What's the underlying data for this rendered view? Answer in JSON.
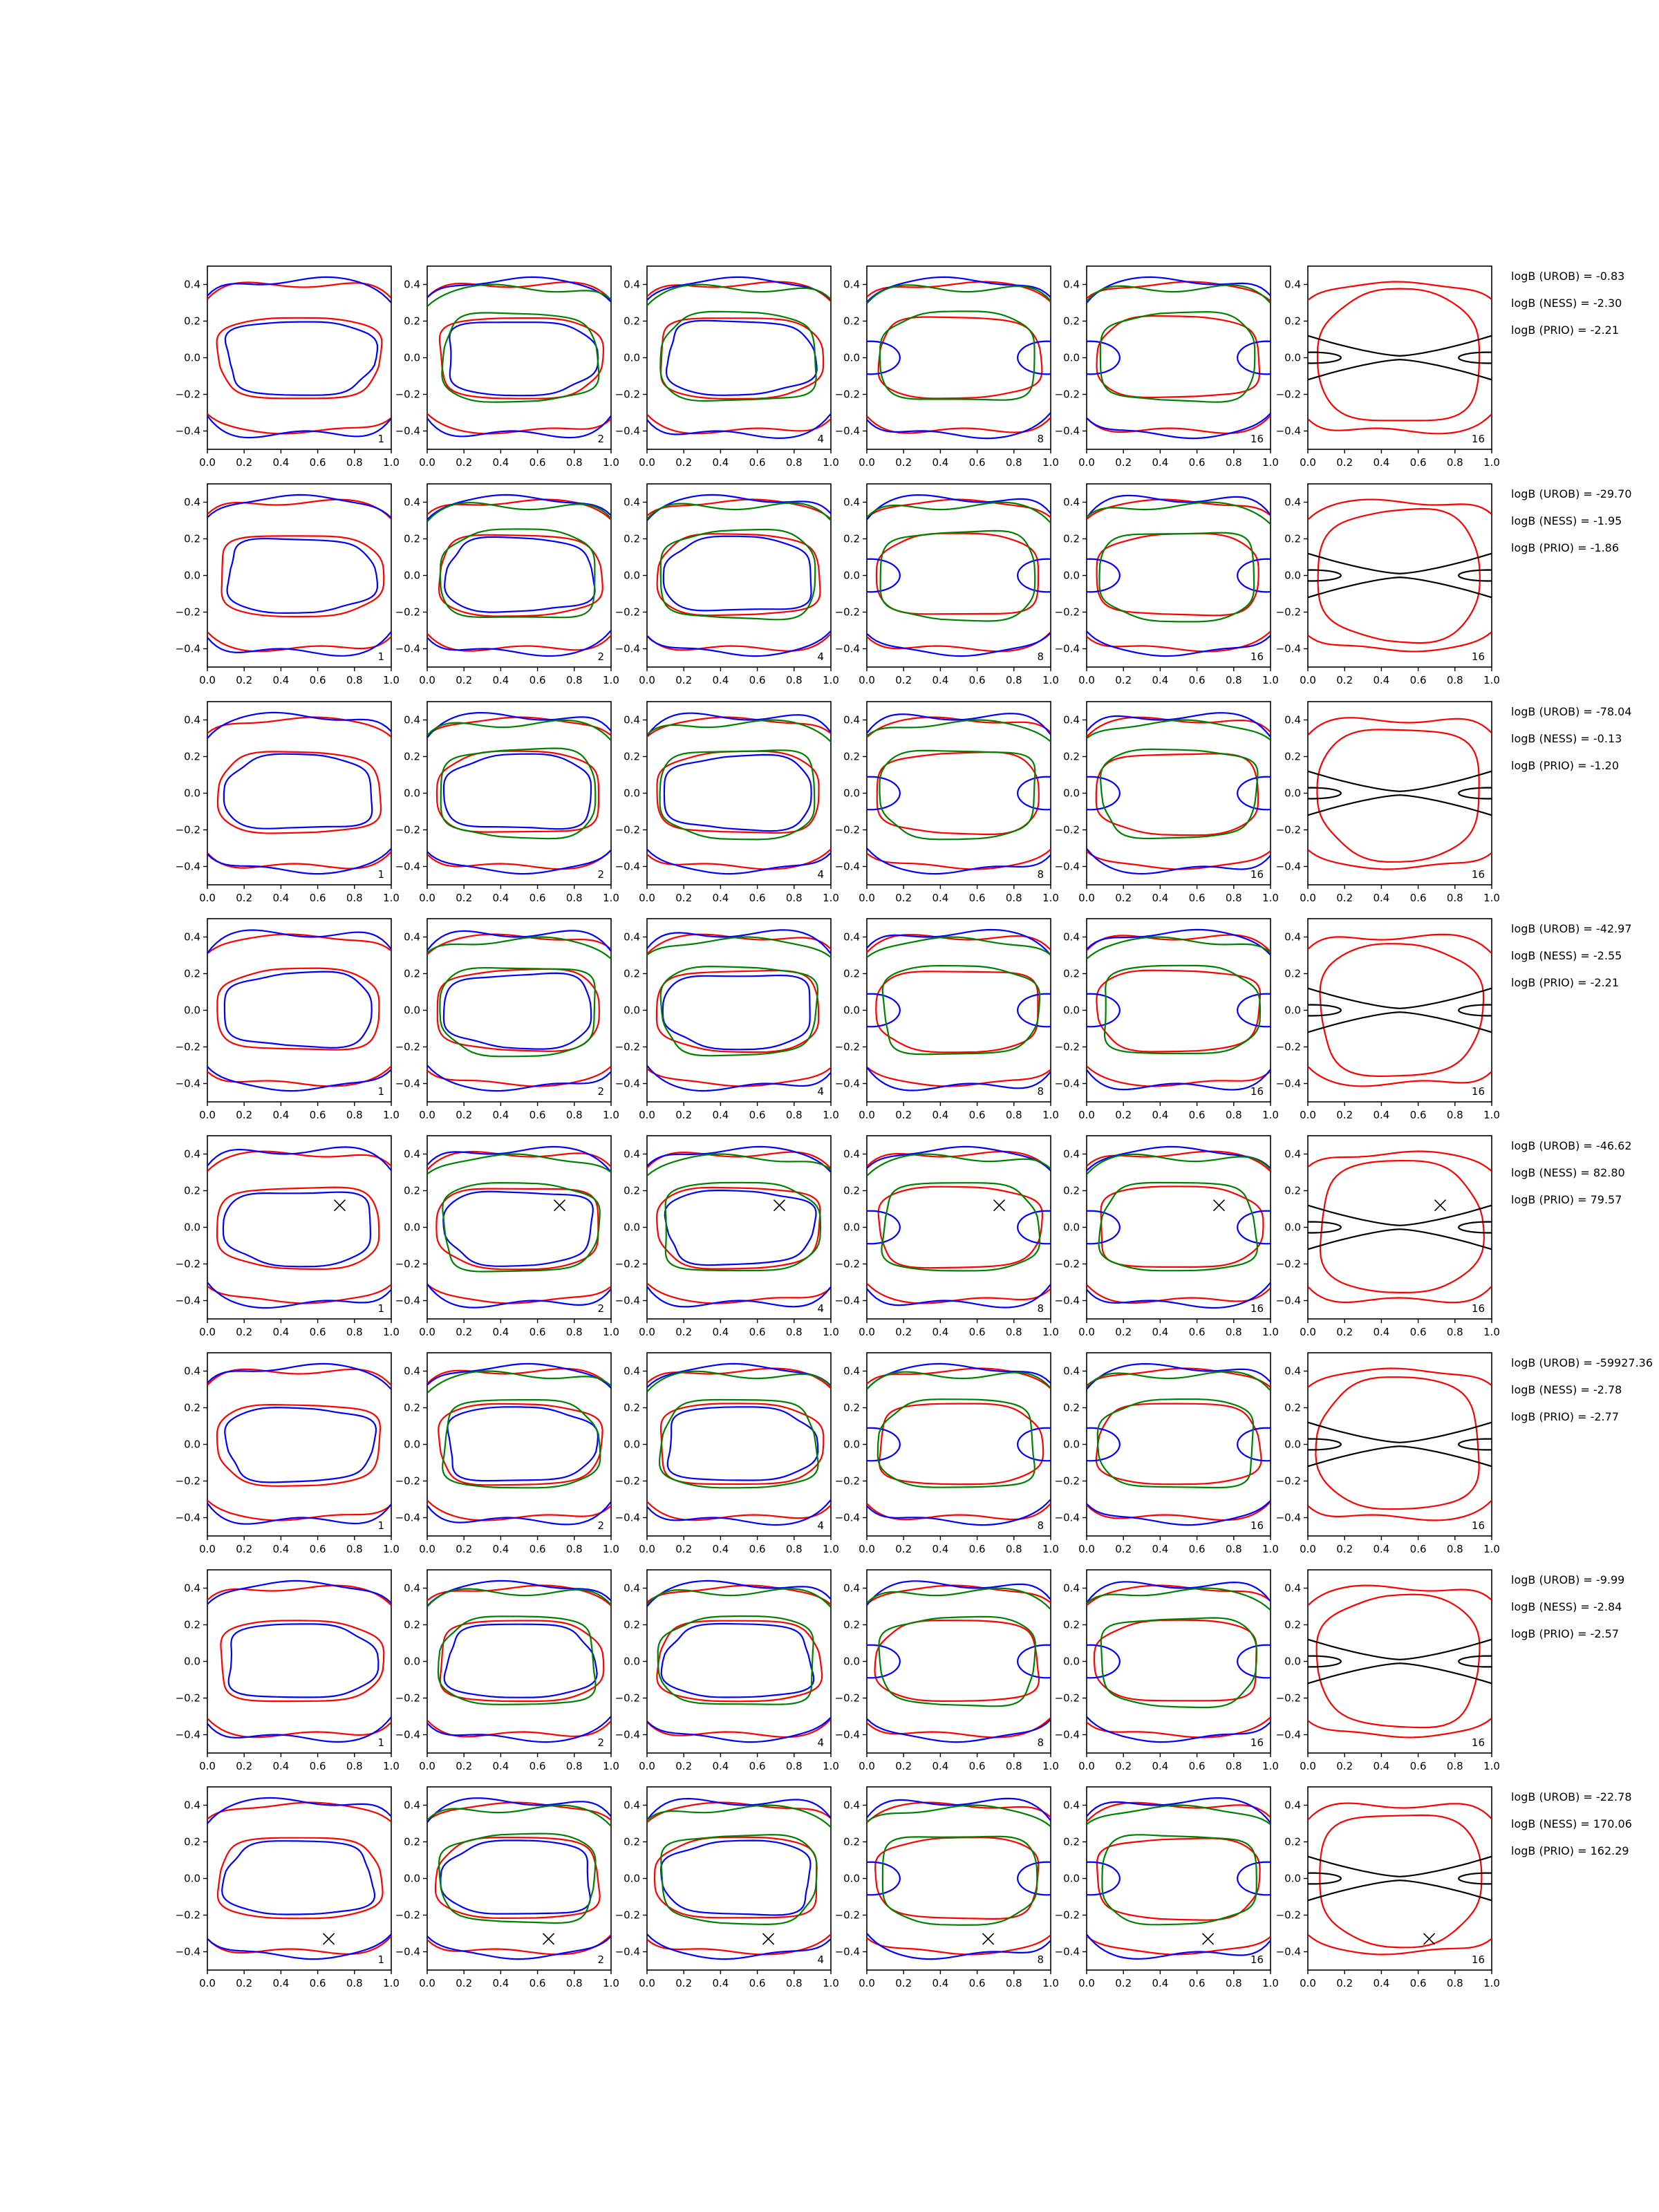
{
  "chart_data": {
    "type": "contour-grid",
    "title": "",
    "xlabel": "",
    "ylabel": "",
    "xlim": [
      0.0,
      1.0
    ],
    "ylim": [
      -0.5,
      0.5
    ],
    "x_ticks": [
      "0.0",
      "0.2",
      "0.4",
      "0.6",
      "0.8",
      "1.0"
    ],
    "y_ticks": [
      "0.4",
      "0.2",
      "0.0",
      "−0.2",
      "−0.4"
    ],
    "x_tick_values": [
      0.0,
      0.2,
      0.4,
      0.6,
      0.8,
      1.0
    ],
    "y_tick_values": [
      0.4,
      0.2,
      0.0,
      -0.2,
      -0.4
    ],
    "grid": false,
    "colors": {
      "blue": "#0000ff",
      "red": "#ff0000",
      "green": "#008000",
      "black": "#000000"
    },
    "column_labels": [
      "1",
      "2",
      "4",
      "8",
      "16",
      "16"
    ],
    "rows": [
      {
        "annotations": [
          "logB (UROB) = -0.83",
          "logB (NESS) = -2.30",
          "logB (PRIO) = -2.21"
        ],
        "marker": null
      },
      {
        "annotations": [
          "logB (UROB) = -29.70",
          "logB (NESS) = -1.95",
          "logB (PRIO) = -1.86"
        ],
        "marker": null
      },
      {
        "annotations": [
          "logB (UROB) = -78.04",
          "logB (NESS) = -0.13",
          "logB (PRIO) = -1.20"
        ],
        "marker": null
      },
      {
        "annotations": [
          "logB (UROB) = -42.97",
          "logB (NESS) = -2.55",
          "logB (PRIO) = -2.21"
        ],
        "marker": null
      },
      {
        "annotations": [
          "logB (UROB) = -46.62",
          "logB (NESS) = 82.80",
          "logB (PRIO) = 79.57"
        ],
        "marker": [
          0.72,
          0.12
        ]
      },
      {
        "annotations": [
          "logB (UROB) = -59927.36",
          "logB (NESS) = -2.78",
          "logB (PRIO) = -2.77"
        ],
        "marker": null
      },
      {
        "annotations": [
          "logB (UROB) = -9.99",
          "logB (NESS) = -2.84",
          "logB (PRIO) = -2.57"
        ],
        "marker": null
      },
      {
        "annotations": [
          "logB (UROB) = -22.78",
          "logB (NESS) = 170.06",
          "logB (PRIO) = 162.29"
        ],
        "marker": [
          0.66,
          -0.33
        ]
      }
    ]
  }
}
